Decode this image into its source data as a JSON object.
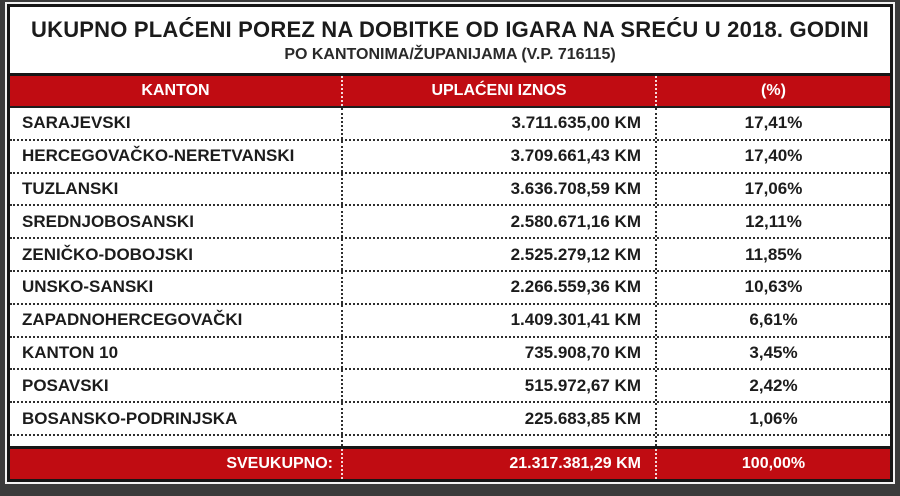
{
  "title": "UKUPNO PLAĆENI POREZ NA DOBITKE OD IGARA NA SREĆU U 2018. GODINI",
  "subtitle": "PO KANTONIMA/ŽUPANIJAMA (V.P. 716115)",
  "colors": {
    "accent_red": "#c00c12",
    "band_text": "#ffffff",
    "frame_black": "#161616",
    "page_background": "#3b3b3b"
  },
  "table": {
    "columns": [
      "KANTON",
      "UPLAĆENI IZNOS",
      "(%)"
    ],
    "rows": [
      {
        "kanton": "SARAJEVSKI",
        "iznos": "3.711.635,00 KM",
        "pct": "17,41%"
      },
      {
        "kanton": "HERCEGOVAČKO-NERETVANSKI",
        "iznos": "3.709.661,43 KM",
        "pct": "17,40%"
      },
      {
        "kanton": "TUZLANSKI",
        "iznos": "3.636.708,59 KM",
        "pct": "17,06%"
      },
      {
        "kanton": "SREDNJOBOSANSKI",
        "iznos": "2.580.671,16 KM",
        "pct": "12,11%"
      },
      {
        "kanton": "ZENIČKO-DOBOJSKI",
        "iznos": "2.525.279,12 KM",
        "pct": "11,85%"
      },
      {
        "kanton": "UNSKO-SANSKI",
        "iznos": "2.266.559,36 KM",
        "pct": "10,63%"
      },
      {
        "kanton": "ZAPADNOHERCEGOVAČKI",
        "iznos": "1.409.301,41 KM",
        "pct": "6,61%"
      },
      {
        "kanton": "KANTON 10",
        "iznos": "735.908,70 KM",
        "pct": "3,45%"
      },
      {
        "kanton": "POSAVSKI",
        "iznos": "515.972,67 KM",
        "pct": "2,42%"
      },
      {
        "kanton": "BOSANSKO-PODRINJSKA",
        "iznos": "225.683,85 KM",
        "pct": "1,06%"
      }
    ],
    "total": {
      "label": "SVEUKUPNO:",
      "iznos": "21.317.381,29 KM",
      "pct": "100,00%"
    }
  },
  "chart_data": {
    "type": "table",
    "title": "UKUPNO PLAĆENI POREZ NA DOBITKE OD IGARA NA SREĆU U 2018. GODINI",
    "subtitle": "PO KANTONIMA/ŽUPANIJAMA (V.P. 716115)",
    "columns": [
      "KANTON",
      "UPLAĆENI IZNOS",
      "(%)"
    ],
    "rows": [
      [
        "SARAJEVSKI",
        "3.711.635,00 KM",
        "17,41%"
      ],
      [
        "HERCEGOVAČKO-NERETVANSKI",
        "3.709.661,43 KM",
        "17,40%"
      ],
      [
        "TUZLANSKI",
        "3.636.708,59 KM",
        "17,06%"
      ],
      [
        "SREDNJOBOSANSKI",
        "2.580.671,16 KM",
        "12,11%"
      ],
      [
        "ZENIČKO-DOBOJSKI",
        "2.525.279,12 KM",
        "11,85%"
      ],
      [
        "UNSKO-SANSKI",
        "2.266.559,36 KM",
        "10,63%"
      ],
      [
        "ZAPADNOHERCEGOVAČKI",
        "1.409.301,41 KM",
        "6,61%"
      ],
      [
        "KANTON 10",
        "735.908,70 KM",
        "3,45%"
      ],
      [
        "POSAVSKI",
        "515.972,67 KM",
        "2,42%"
      ],
      [
        "BOSANSKO-PODRINJSKA",
        "225.683,85 KM",
        "1,06%"
      ]
    ],
    "total_row": [
      "SVEUKUPNO:",
      "21.317.381,29 KM",
      "100,00%"
    ],
    "values_km": [
      3711635.0,
      3709661.43,
      3636708.59,
      2580671.16,
      2525279.12,
      2266559.36,
      1409301.41,
      735908.7,
      515972.67,
      225683.85
    ],
    "values_pct": [
      17.41,
      17.4,
      17.06,
      12.11,
      11.85,
      10.63,
      6.61,
      3.45,
      2.42,
      1.06
    ],
    "total_km": 21317381.29,
    "total_pct": 100.0
  }
}
